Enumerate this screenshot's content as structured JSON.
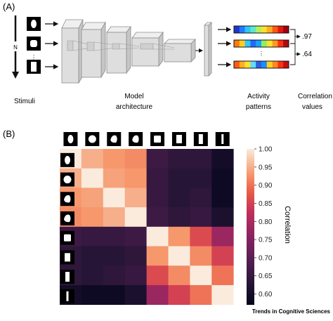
{
  "panel_a": {
    "label": "(A)",
    "n_label": "N",
    "ellipsis": "⋮",
    "captions": {
      "stimuli": "Stimuli",
      "model_line1": "Model",
      "model_line2": "architecture",
      "activity_line1": "Activity",
      "activity_line2": "patterns",
      "corr_line1": "Correlation",
      "corr_line2": "values"
    },
    "correlations": [
      ".97",
      ".64"
    ],
    "stimulus_shapes": [
      "oval-icon",
      "rounded-square-icon",
      "tall-rectangle-icon"
    ]
  },
  "panel_b": {
    "label": "(B)",
    "colorbar_label": "Correlation",
    "colorbar_ticks": [
      "1.00",
      "0.95",
      "0.90",
      "0.85",
      "0.80",
      "0.75",
      "0.70",
      "0.65",
      "0.60"
    ],
    "stimulus_shapes": [
      "oval-icon",
      "round-icon",
      "irregular-icon",
      "irregular-icon",
      "square-icon",
      "rect-icon",
      "tall-rect-icon",
      "bar-icon"
    ]
  },
  "chart_data": {
    "type": "heatmap",
    "vmin": 0.57,
    "vmax": 1.0,
    "rows": 8,
    "cols": 8,
    "values": [
      [
        1.0,
        0.95,
        0.93,
        0.92,
        0.66,
        0.64,
        0.64,
        0.6
      ],
      [
        0.95,
        1.0,
        0.94,
        0.93,
        0.65,
        0.63,
        0.63,
        0.59
      ],
      [
        0.93,
        0.94,
        1.0,
        0.95,
        0.65,
        0.63,
        0.64,
        0.59
      ],
      [
        0.92,
        0.93,
        0.95,
        1.0,
        0.66,
        0.64,
        0.65,
        0.61
      ],
      [
        0.66,
        0.65,
        0.65,
        0.66,
        1.0,
        0.93,
        0.86,
        0.78
      ],
      [
        0.64,
        0.63,
        0.63,
        0.64,
        0.93,
        1.0,
        0.92,
        0.85
      ],
      [
        0.64,
        0.63,
        0.64,
        0.65,
        0.86,
        0.92,
        1.0,
        0.9
      ],
      [
        0.6,
        0.59,
        0.59,
        0.61,
        0.78,
        0.85,
        0.9,
        1.0
      ]
    ]
  },
  "watermark": "Trends in Cognitive Sciences"
}
